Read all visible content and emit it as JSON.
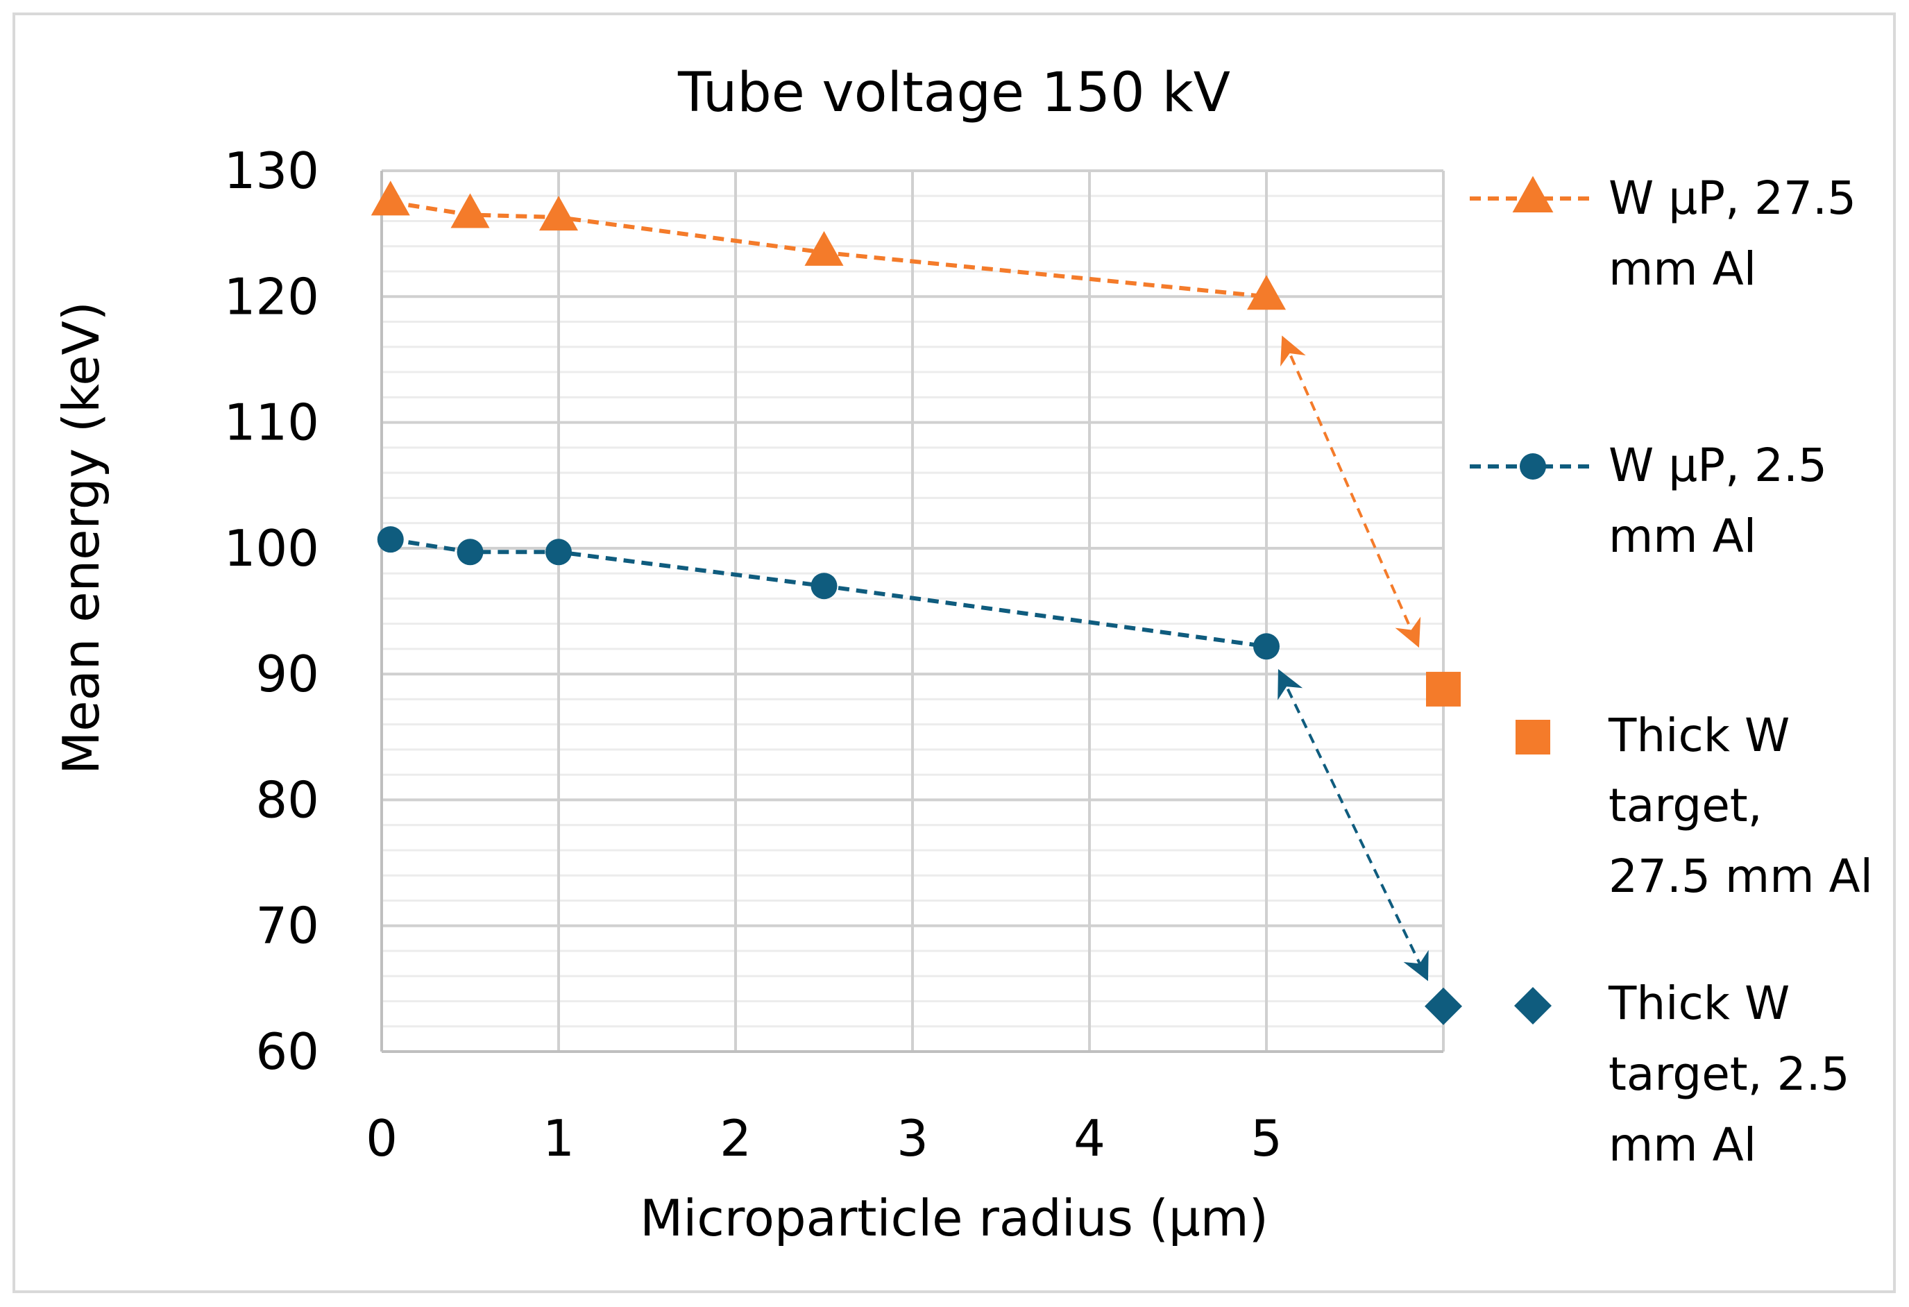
{
  "chart_data": {
    "type": "line",
    "title": "Tube voltage 150 kV",
    "xlabel": "Microparticle radius (μm)",
    "ylabel": "Mean energy (keV)",
    "xlim": [
      0,
      6
    ],
    "ylim": [
      60,
      130
    ],
    "x_ticks": [
      "0",
      "1",
      "2",
      "3",
      "4",
      "5"
    ],
    "y_ticks": [
      "60",
      "70",
      "80",
      "90",
      "100",
      "110",
      "120",
      "130"
    ],
    "grid": {
      "major": true,
      "minor_y": true
    },
    "legend_position": "right",
    "series": [
      {
        "name": "W μP,  27.5 mm Al",
        "legend_lines": [
          "W μP,  27.5",
          "mm Al"
        ],
        "color": "#f47b2a",
        "marker": "triangle",
        "line": "dashed",
        "x": [
          0.05,
          0.5,
          1,
          2.5,
          5
        ],
        "y": [
          127.5,
          126.5,
          126.3,
          123.5,
          120.0
        ]
      },
      {
        "name": "W μP,  2.5 mm Al",
        "legend_lines": [
          "W μP,  2.5",
          "mm Al"
        ],
        "color": "#0f5c7e",
        "marker": "circle",
        "line": "dashed",
        "x": [
          0.05,
          0.5,
          1,
          2.5,
          5
        ],
        "y": [
          100.7,
          99.7,
          99.7,
          97.0,
          92.2
        ]
      },
      {
        "name": "Thick W target, 27.5 mm Al",
        "legend_lines": [
          "Thick W",
          "target,",
          "27.5 mm Al"
        ],
        "color": "#f47b2a",
        "marker": "square",
        "line": "none",
        "x": [
          6
        ],
        "y": [
          88.8
        ]
      },
      {
        "name": "Thick W target,  2.5 mm Al",
        "legend_lines": [
          "Thick W",
          "target,  2.5",
          "mm Al"
        ],
        "color": "#0f5c7e",
        "marker": "diamond",
        "line": "none",
        "x": [
          6
        ],
        "y": [
          63.6
        ]
      }
    ],
    "annotations": [
      {
        "type": "double-arrow",
        "color": "#f47b2a",
        "from": [
          5.1,
          116.5
        ],
        "to": [
          5.85,
          92.5
        ]
      },
      {
        "type": "double-arrow",
        "color": "#0f5c7e",
        "from": [
          5.08,
          90.0
        ],
        "to": [
          5.9,
          66.0
        ]
      }
    ]
  }
}
